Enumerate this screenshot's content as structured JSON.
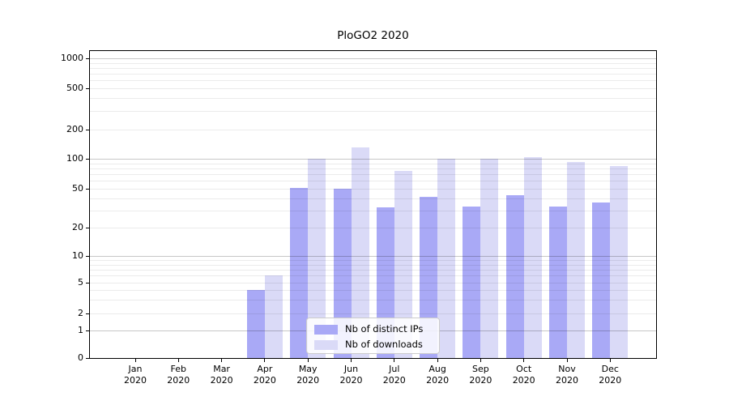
{
  "title": "PloGO2 2020",
  "chart_data": {
    "type": "bar",
    "title": "PloGO2 2020",
    "categories": [
      "Jan 2020",
      "Feb 2020",
      "Mar 2020",
      "Apr 2020",
      "May 2020",
      "Jun 2020",
      "Jul 2020",
      "Aug 2020",
      "Sep 2020",
      "Oct 2020",
      "Nov 2020",
      "Dec 2020"
    ],
    "series": [
      {
        "name": "Nb of distinct IPs",
        "color": "#a9a9f6",
        "values": [
          0,
          0,
          0,
          4,
          51,
          50,
          32,
          41,
          33,
          43,
          33,
          36
        ]
      },
      {
        "name": "Nb of downloads",
        "color": "#dadaf7",
        "values": [
          0,
          0,
          0,
          6,
          100,
          130,
          75,
          100,
          100,
          103,
          93,
          85
        ]
      }
    ],
    "xlabel": "",
    "ylabel": "",
    "yscale": "pseudo-log",
    "yticks": [
      0,
      1,
      2,
      5,
      10,
      20,
      50,
      100,
      200,
      500,
      1000
    ],
    "ylim": [
      0,
      1150
    ],
    "grid": true,
    "legend_position": "lower center inside",
    "colors": {
      "major_gridline": "#c7c7c7",
      "minor_gridline": "#ebebeb",
      "axis": "#000000",
      "background": "#ffffff"
    }
  }
}
